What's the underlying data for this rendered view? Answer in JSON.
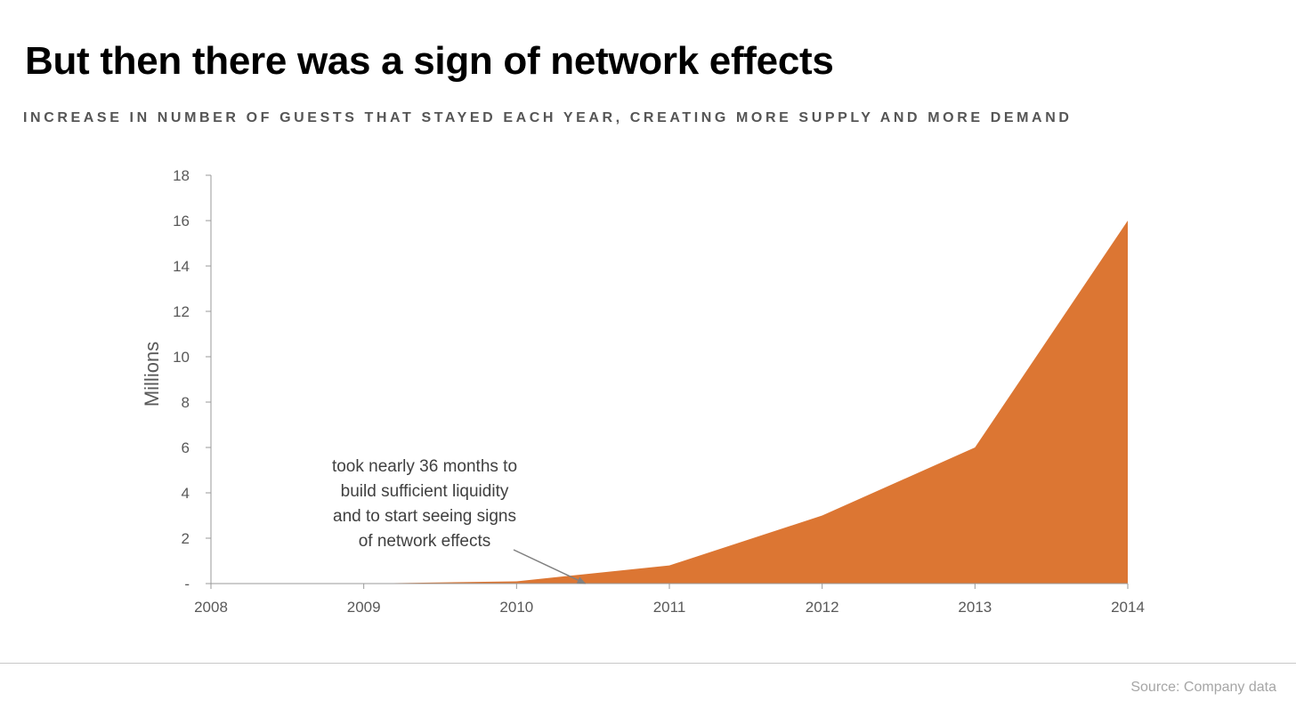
{
  "header": {
    "title": "But then there was a sign of network effects",
    "subtitle": "INCREASE IN NUMBER OF GUESTS THAT STAYED EACH YEAR, CREATING MORE SUPPLY AND MORE DEMAND"
  },
  "footer": {
    "source": "Source: Company data"
  },
  "colors": {
    "area": "#DC7633",
    "axis": "#999999",
    "text": "#595959"
  },
  "chart_data": {
    "type": "area",
    "title": "",
    "xlabel": "",
    "ylabel": "Millions",
    "x": [
      2008,
      2009,
      2010,
      2011,
      2012,
      2013,
      2014
    ],
    "series": [
      {
        "values": [
          0,
          0,
          0.1,
          0.8,
          3,
          6,
          16
        ]
      }
    ],
    "xlim": [
      2008,
      2014
    ],
    "ylim": [
      0,
      18
    ],
    "y_ticks": [
      0,
      2,
      4,
      6,
      8,
      10,
      12,
      14,
      16,
      18
    ],
    "y_tick_labels": [
      "-",
      "2",
      "4",
      "6",
      "8",
      "10",
      "12",
      "14",
      "16",
      "18"
    ],
    "x_tick_labels": [
      "2008",
      "2009",
      "2010",
      "2011",
      "2012",
      "2013",
      "2014"
    ],
    "grid": false,
    "legend": "none",
    "annotation": {
      "lines": [
        "took nearly 36 months to",
        "build sufficient liquidity",
        "and to start seeing signs",
        "of network effects"
      ],
      "points_to": {
        "x": 2010.45,
        "y": 0
      }
    }
  }
}
